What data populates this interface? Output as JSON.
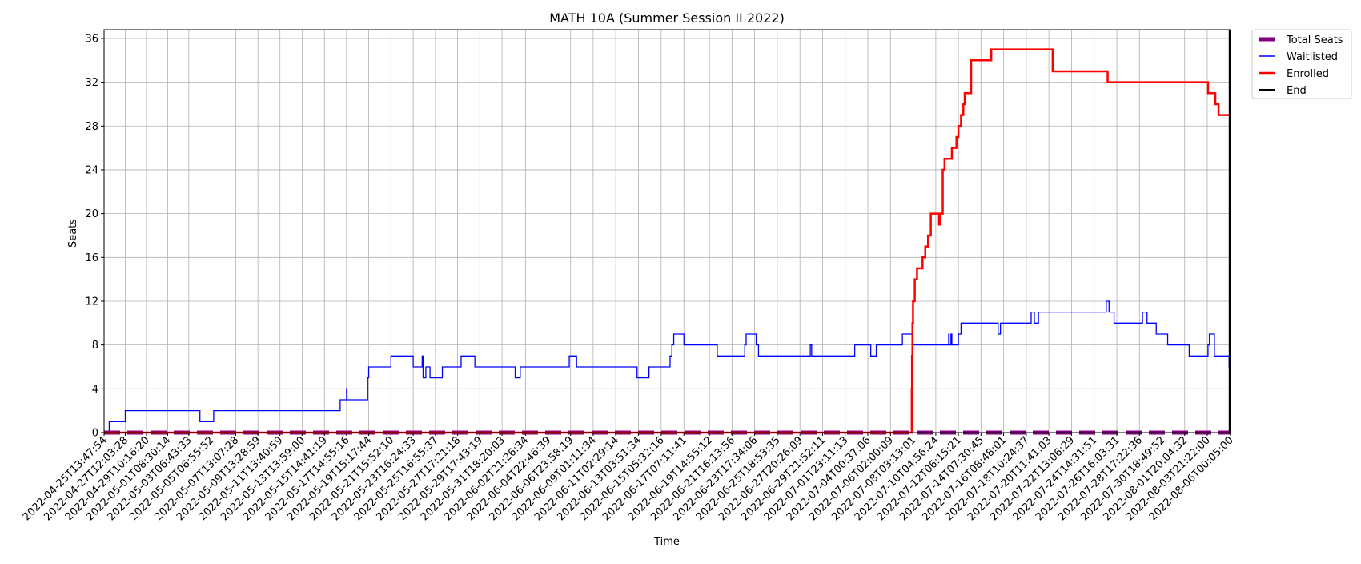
{
  "chart_data": {
    "type": "line",
    "title": "MATH 10A (Summer Session II 2022)",
    "xlabel": "Time",
    "ylabel": "Seats",
    "ylim": [
      0,
      36.8
    ],
    "xlim": [
      "2022-04-25T13:47:54",
      "2022-08-06T00:05:00"
    ],
    "y_ticks": [
      0,
      4,
      8,
      12,
      16,
      20,
      24,
      28,
      32,
      36
    ],
    "x_ticks": [
      "2022-04-25T13:47:54",
      "2022-04-27T12:03:28",
      "2022-04-29T10:16:20",
      "2022-05-01T08:30:14",
      "2022-05-03T06:43:33",
      "2022-05-05T06:55:52",
      "2022-05-07T13:07:28",
      "2022-05-09T13:28:59",
      "2022-05-11T13:40:59",
      "2022-05-13T13:59:00",
      "2022-05-15T14:41:19",
      "2022-05-17T14:55:16",
      "2022-05-19T15:17:44",
      "2022-05-21T15:52:10",
      "2022-05-23T16:24:33",
      "2022-05-25T16:55:37",
      "2022-05-27T17:21:18",
      "2022-05-29T17:43:19",
      "2022-05-31T18:20:03",
      "2022-06-02T21:26:34",
      "2022-06-04T22:46:39",
      "2022-06-06T23:58:19",
      "2022-06-09T01:11:34",
      "2022-06-11T02:29:14",
      "2022-06-13T03:51:34",
      "2022-06-15T05:32:16",
      "2022-06-17T07:11:41",
      "2022-06-19T14:55:12",
      "2022-06-21T16:13:56",
      "2022-06-23T17:34:06",
      "2022-06-25T18:53:35",
      "2022-06-27T20:26:09",
      "2022-06-29T21:52:11",
      "2022-07-01T23:11:13",
      "2022-07-04T00:37:06",
      "2022-07-06T02:00:09",
      "2022-07-08T03:13:01",
      "2022-07-10T04:56:24",
      "2022-07-12T06:15:21",
      "2022-07-14T07:30:45",
      "2022-07-16T08:48:01",
      "2022-07-18T10:24:37",
      "2022-07-20T11:41:03",
      "2022-07-22T13:06:29",
      "2022-07-24T14:31:51",
      "2022-07-26T16:03:31",
      "2022-07-28T17:22:36",
      "2022-07-30T18:49:52",
      "2022-08-01T20:04:32",
      "2022-08-03T21:22:00",
      "2022-08-06T00:05:00"
    ],
    "grid": true,
    "legend_position": "outside-top-right",
    "series": [
      {
        "name": "Total Seats",
        "color": "#800080",
        "style": "dashed",
        "points": [
          [
            "2022-04-25T13:47:54",
            0
          ],
          [
            "2022-08-06T00:05:00",
            0
          ]
        ]
      },
      {
        "name": "Waitlisted",
        "color": "#0000ff",
        "style": "step",
        "points": [
          [
            "2022-04-25T13:47:54",
            0
          ],
          [
            "2022-04-26T01:00:00",
            1
          ],
          [
            "2022-04-27T12:03:28",
            2
          ],
          [
            "2022-05-04T07:00:00",
            1
          ],
          [
            "2022-05-05T13:00:00",
            2
          ],
          [
            "2022-05-17T01:00:00",
            3
          ],
          [
            "2022-05-17T15:00:00",
            4
          ],
          [
            "2022-05-17T16:00:00",
            3
          ],
          [
            "2022-05-19T13:00:00",
            5
          ],
          [
            "2022-05-19T15:17:44",
            6
          ],
          [
            "2022-05-21T15:52:10",
            7
          ],
          [
            "2022-05-23T16:24:33",
            6
          ],
          [
            "2022-05-24T12:00:00",
            7
          ],
          [
            "2022-05-24T14:00:00",
            5
          ],
          [
            "2022-05-24T20:00:00",
            6
          ],
          [
            "2022-05-25T05:00:00",
            5
          ],
          [
            "2022-05-26T08:00:00",
            6
          ],
          [
            "2022-05-28T01:00:00",
            7
          ],
          [
            "2022-05-29T07:00:00",
            6
          ],
          [
            "2022-06-01T23:00:00",
            5
          ],
          [
            "2022-06-02T10:00:00",
            6
          ],
          [
            "2022-06-06T21:00:00",
            7
          ],
          [
            "2022-06-07T13:00:00",
            6
          ],
          [
            "2022-06-13T01:00:00",
            5
          ],
          [
            "2022-06-14T03:00:00",
            6
          ],
          [
            "2022-06-16T01:00:00",
            7
          ],
          [
            "2022-06-16T05:00:00",
            8
          ],
          [
            "2022-06-16T09:00:00",
            9
          ],
          [
            "2022-06-17T07:11:41",
            8
          ],
          [
            "2022-06-20T08:00:00",
            7
          ],
          [
            "2022-06-22T20:00:00",
            8
          ],
          [
            "2022-06-22T23:00:00",
            9
          ],
          [
            "2022-06-23T21:00:00",
            8
          ],
          [
            "2022-06-24T02:00:00",
            7
          ],
          [
            "2022-06-28T19:00:00",
            8
          ],
          [
            "2022-06-28T22:00:00",
            7
          ],
          [
            "2022-07-02T20:00:00",
            8
          ],
          [
            "2022-07-04T07:00:00",
            7
          ],
          [
            "2022-07-04T19:00:00",
            8
          ],
          [
            "2022-07-07T04:00:00",
            9
          ],
          [
            "2022-07-08T03:13:01",
            8
          ],
          [
            "2022-07-11T09:00:00",
            9
          ],
          [
            "2022-07-11T10:00:00",
            8
          ],
          [
            "2022-07-11T14:00:00",
            9
          ],
          [
            "2022-07-11T16:00:00",
            8
          ],
          [
            "2022-07-12T06:15:21",
            9
          ],
          [
            "2022-07-12T12:00:00",
            10
          ],
          [
            "2022-07-15T21:00:00",
            9
          ],
          [
            "2022-07-16T02:00:00",
            10
          ],
          [
            "2022-07-18T21:00:00",
            11
          ],
          [
            "2022-07-19T04:00:00",
            10
          ],
          [
            "2022-07-19T13:00:00",
            11
          ],
          [
            "2022-07-25T17:00:00",
            12
          ],
          [
            "2022-07-25T23:00:00",
            11
          ],
          [
            "2022-07-26T10:00:00",
            10
          ],
          [
            "2022-07-29T00:00:00",
            11
          ],
          [
            "2022-07-29T10:00:00",
            10
          ],
          [
            "2022-07-30T06:00:00",
            9
          ],
          [
            "2022-07-31T07:00:00",
            8
          ],
          [
            "2022-08-02T06:00:00",
            7
          ],
          [
            "2022-08-03T23:00:00",
            8
          ],
          [
            "2022-08-04T02:00:00",
            9
          ],
          [
            "2022-08-04T13:00:00",
            7
          ],
          [
            "2022-08-05T21:00:00",
            6
          ],
          [
            "2022-08-05T22:30:00",
            4
          ],
          [
            "2022-08-06T00:05:00",
            4
          ]
        ]
      },
      {
        "name": "Enrolled",
        "color": "#ff0000",
        "style": "step",
        "points": [
          [
            "2022-04-25T13:47:54",
            0
          ],
          [
            "2022-07-08T00:00:00",
            0
          ],
          [
            "2022-07-08T00:30:00",
            4
          ],
          [
            "2022-07-08T01:00:00",
            7
          ],
          [
            "2022-07-08T02:00:00",
            10
          ],
          [
            "2022-07-08T03:13:01",
            12
          ],
          [
            "2022-07-08T07:00:00",
            14
          ],
          [
            "2022-07-08T12:00:00",
            15
          ],
          [
            "2022-07-09T00:00:00",
            16
          ],
          [
            "2022-07-09T06:00:00",
            17
          ],
          [
            "2022-07-09T12:00:00",
            18
          ],
          [
            "2022-07-09T18:00:00",
            20
          ],
          [
            "2022-07-10T12:00:00",
            19
          ],
          [
            "2022-07-10T15:00:00",
            20
          ],
          [
            "2022-07-10T20:00:00",
            24
          ],
          [
            "2022-07-11T00:00:00",
            25
          ],
          [
            "2022-07-11T16:00:00",
            26
          ],
          [
            "2022-07-12T02:00:00",
            27
          ],
          [
            "2022-07-12T06:15:21",
            28
          ],
          [
            "2022-07-12T12:00:00",
            29
          ],
          [
            "2022-07-12T17:00:00",
            30
          ],
          [
            "2022-07-12T20:00:00",
            31
          ],
          [
            "2022-07-13T10:00:00",
            34
          ],
          [
            "2022-07-15T06:00:00",
            35
          ],
          [
            "2022-07-20T20:00:00",
            33
          ],
          [
            "2022-07-25T20:00:00",
            32
          ],
          [
            "2022-08-03T23:00:00",
            31
          ],
          [
            "2022-08-04T15:00:00",
            30
          ],
          [
            "2022-08-04T22:00:00",
            29
          ],
          [
            "2022-08-06T00:05:00",
            29
          ]
        ]
      },
      {
        "name": "End",
        "color": "#000000",
        "style": "vline",
        "x": "2022-08-05T22:00:00"
      }
    ]
  }
}
